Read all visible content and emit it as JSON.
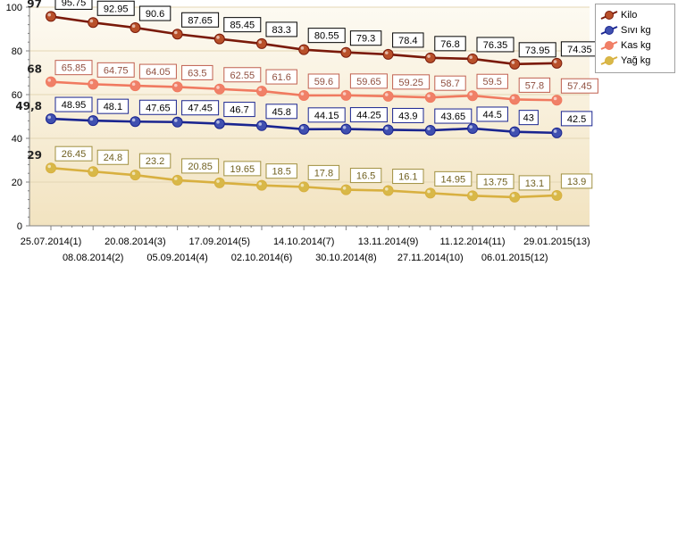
{
  "chart_data": {
    "type": "line",
    "categories": [
      "25.07.2014(1)",
      "08.08.2014(2)",
      "20.08.2014(3)",
      "05.09.2014(4)",
      "17.09.2014(5)",
      "02.10.2014(6)",
      "14.10.2014(7)",
      "30.10.2014(8)",
      "13.11.2014(9)",
      "27.11.2014(10)",
      "11.12.2014(11)",
      "06.01.2015(12)",
      "29.01.2015(13)"
    ],
    "ylim": [
      0,
      100
    ],
    "yticks": [
      0,
      20,
      40,
      60,
      80,
      100
    ],
    "grid": true,
    "legend_position": "top-right",
    "series": [
      {
        "name": "Kilo",
        "color": "#7a1a0a",
        "marker": "#b8502a",
        "label_border": "#000000",
        "label_text": "#000000",
        "start_label": "97",
        "values": [
          95.75,
          92.95,
          90.6,
          87.65,
          85.45,
          83.3,
          80.55,
          79.3,
          78.4,
          76.8,
          76.35,
          73.95,
          74.35
        ]
      },
      {
        "name": "Sıvı kg",
        "color": "#1a2590",
        "marker": "#4050b0",
        "label_border": "#1a2590",
        "label_text": "#000000",
        "start_label": "49,8",
        "values": [
          48.95,
          48.1,
          47.65,
          47.45,
          46.7,
          45.8,
          44.15,
          44.25,
          43.9,
          43.65,
          44.5,
          43,
          42.5
        ]
      },
      {
        "name": "Kas kg",
        "color": "#f07a60",
        "marker": "#f08068",
        "label_border": "#c06050",
        "label_text": "#905040",
        "start_label": "68",
        "values": [
          65.85,
          64.75,
          64.05,
          63.5,
          62.55,
          61.6,
          59.6,
          59.65,
          59.25,
          58.7,
          59.5,
          57.8,
          57.45
        ]
      },
      {
        "name": "Yağ kg",
        "color": "#d8b040",
        "marker": "#d8b848",
        "label_border": "#a09040",
        "label_text": "#706020",
        "start_label": "29",
        "values": [
          26.45,
          24.8,
          23.2,
          20.85,
          19.65,
          18.5,
          17.8,
          16.5,
          16.1,
          14.95,
          13.75,
          13.1,
          13.9
        ]
      }
    ]
  }
}
